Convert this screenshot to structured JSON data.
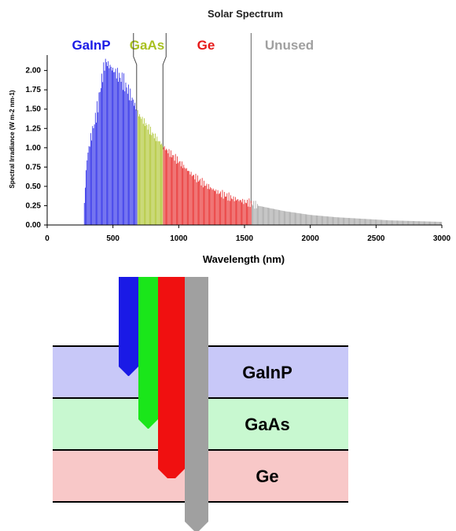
{
  "chart_data": {
    "type": "bar",
    "title": "Solar Spectrum",
    "xlabel": "Wavelength (nm)",
    "ylabel": "Spectral Irradiance (W m-2 nm-1)",
    "xlim": [
      0,
      3000
    ],
    "ylim": [
      0,
      2.2
    ],
    "x_ticks": [
      "0",
      "500",
      "1000",
      "1500",
      "2000",
      "2500",
      "3000"
    ],
    "y_ticks": [
      "0.00",
      "0.25",
      "0.50",
      "0.75",
      "1.00",
      "1.25",
      "1.50",
      "1.75",
      "2.00"
    ],
    "regions": [
      {
        "name": "GaInP",
        "start": 280,
        "end": 680,
        "color": "#1a1ae6"
      },
      {
        "name": "GaAs",
        "start": 680,
        "end": 880,
        "color": "#a8c020"
      },
      {
        "name": "Ge",
        "start": 880,
        "end": 1550,
        "color": "#e61a1a"
      },
      {
        "name": "Unused",
        "start": 1550,
        "end": 3000,
        "color": "#a0a0a0"
      }
    ],
    "spectrum": {
      "x": [
        280,
        300,
        320,
        340,
        360,
        380,
        400,
        420,
        440,
        460,
        480,
        500,
        520,
        540,
        560,
        580,
        600,
        620,
        640,
        660,
        680,
        700,
        750,
        800,
        850,
        900,
        950,
        1000,
        1100,
        1200,
        1300,
        1400,
        1500,
        1550,
        1600,
        1800,
        2000,
        2200,
        2400,
        2600,
        2800,
        3000
      ],
      "y": [
        0.3,
        0.85,
        1.05,
        1.2,
        1.35,
        1.5,
        1.75,
        1.95,
        2.12,
        2.08,
        2.05,
        2.0,
        1.98,
        1.93,
        1.9,
        1.85,
        1.78,
        1.72,
        1.65,
        1.57,
        1.48,
        1.42,
        1.3,
        1.18,
        1.08,
        0.98,
        0.9,
        0.82,
        0.65,
        0.52,
        0.42,
        0.35,
        0.3,
        0.28,
        0.25,
        0.18,
        0.13,
        0.1,
        0.08,
        0.06,
        0.05,
        0.04
      ]
    }
  },
  "diagram": {
    "layers": [
      {
        "name": "GaInP",
        "color": "#c8c8f8"
      },
      {
        "name": "GaAs",
        "color": "#c8f8d0"
      },
      {
        "name": "Ge",
        "color": "#f8c8c8"
      }
    ],
    "beams": [
      {
        "color": "#1a1ae6"
      },
      {
        "color": "#1ae61a"
      },
      {
        "color": "#f01010"
      },
      {
        "color": "#a0a0a0"
      }
    ]
  }
}
